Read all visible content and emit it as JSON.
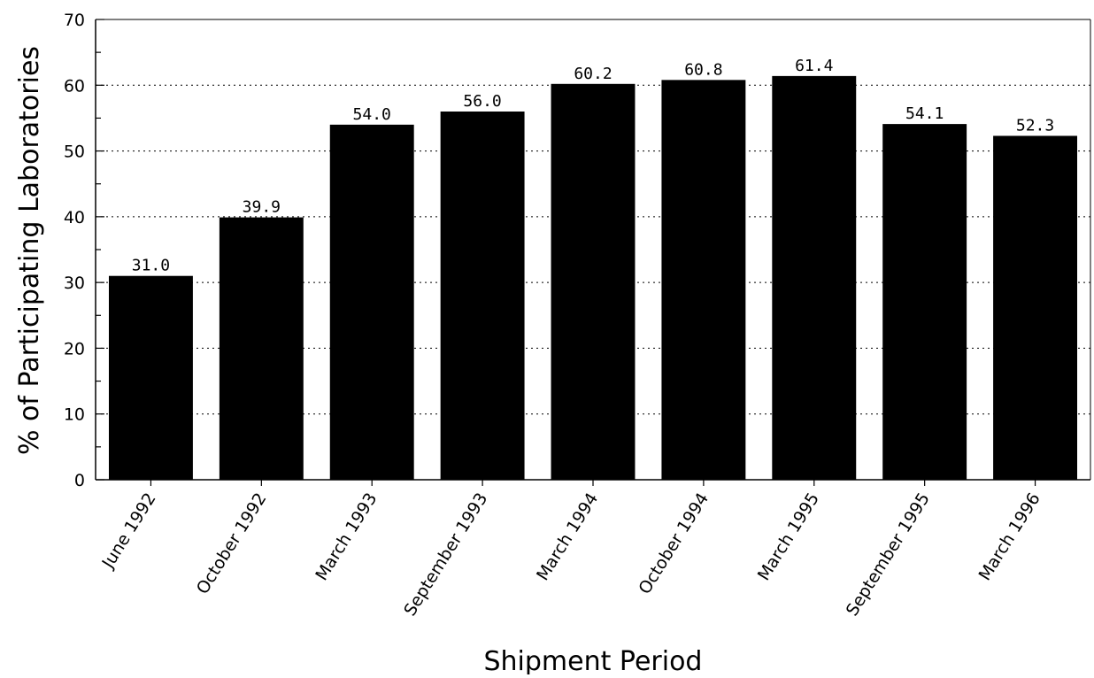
{
  "chart_data": {
    "type": "bar",
    "title": "",
    "xlabel": "Shipment Period",
    "ylabel": "% of Participating Laboratories",
    "ylim": [
      0,
      70
    ],
    "yticks": [
      0,
      10,
      20,
      30,
      40,
      50,
      60,
      70
    ],
    "grid": "horizontal dotted",
    "categories": [
      "June 1992",
      "October 1992",
      "March 1993",
      "September 1993",
      "March 1994",
      "October 1994",
      "March 1995",
      "September 1995",
      "March 1996"
    ],
    "values": [
      31.0,
      39.9,
      54.0,
      56.0,
      60.2,
      60.8,
      61.4,
      54.1,
      52.3
    ],
    "data_labels": [
      "31.0",
      "39.9",
      "54.0",
      "56.0",
      "60.2",
      "60.8",
      "61.4",
      "54.1",
      "52.3"
    ],
    "bar_color": "#000000"
  }
}
